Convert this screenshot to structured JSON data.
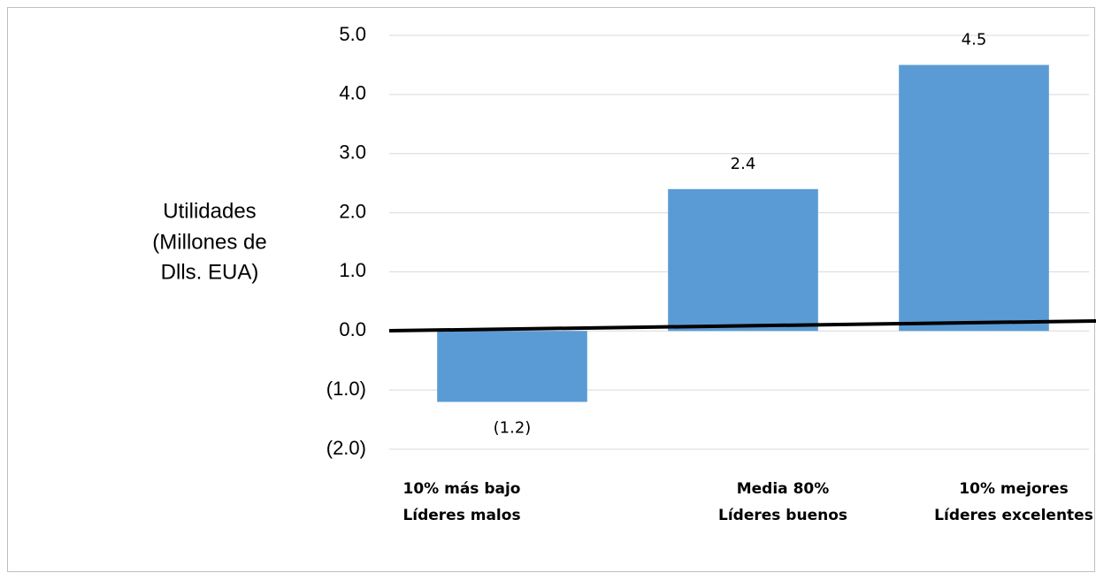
{
  "chart_data": {
    "type": "bar",
    "y_label": [
      "Utilidades",
      "(Millones de",
      "Dlls. EUA)"
    ],
    "categories": [
      [
        "10% más bajo",
        "Líderes malos"
      ],
      [
        "Media 80%",
        "Líderes buenos"
      ],
      [
        "10% mejores",
        "Líderes excelentes"
      ]
    ],
    "values": [
      -1.2,
      2.4,
      4.5
    ],
    "value_labels": [
      "(1.2)",
      "2.4",
      "4.5"
    ],
    "color": "#5b9bd5",
    "ylim": [
      -2,
      5
    ],
    "yticks": [
      {
        "value": -2,
        "label": "(2.0)"
      },
      {
        "value": -1,
        "label": "(1.0)"
      },
      {
        "value": 0,
        "label": "0.0"
      },
      {
        "value": 1,
        "label": "1.0"
      },
      {
        "value": 2,
        "label": "2.0"
      },
      {
        "value": 3,
        "label": "3.0"
      },
      {
        "value": 4,
        "label": "4.0"
      },
      {
        "value": 5,
        "label": "5.0"
      }
    ],
    "grid": true
  }
}
